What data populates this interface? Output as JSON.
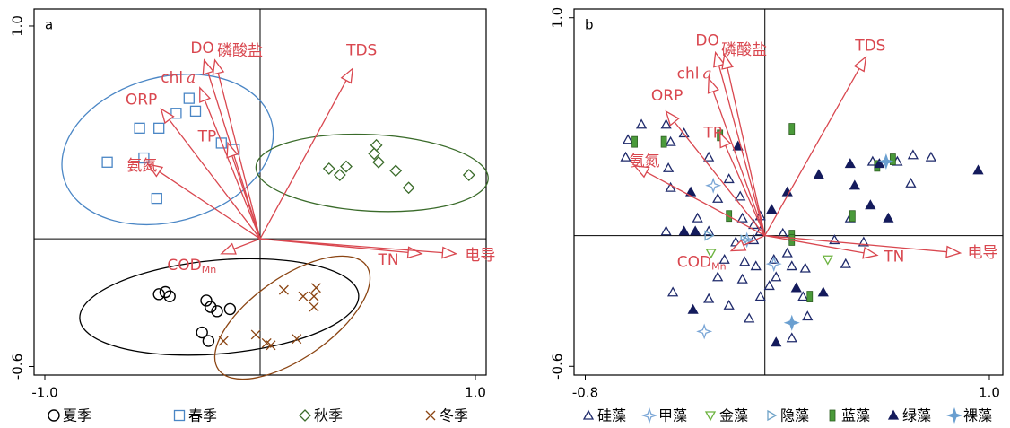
{
  "chart_data": [
    {
      "type": "scatter",
      "panel_label": "a",
      "xlim": [
        -1.05,
        1.05
      ],
      "ylim": [
        -0.64,
        1.08
      ],
      "xticks": [
        {
          "value": -1.0,
          "label": "-1.0"
        },
        {
          "value": 1.0,
          "label": "1.0"
        }
      ],
      "yticks": [
        -0.6,
        {
          "value": 1.0,
          "label": "1.0"
        }
      ],
      "origin_lines": true,
      "arrow_color": "#d9474f",
      "series": [
        {
          "name": "夏季",
          "marker": "circle",
          "color": "#000000",
          "x": [
            -0.47,
            -0.44,
            -0.42,
            -0.25,
            -0.23,
            -0.2,
            -0.14,
            -0.27,
            -0.24
          ],
          "values": [
            -0.26,
            -0.25,
            -0.27,
            -0.29,
            -0.32,
            -0.34,
            -0.33,
            -0.44,
            -0.48
          ],
          "ellipse": {
            "center": [
              -0.19,
              -0.32
            ],
            "radii": [
              0.65,
              0.22
            ],
            "angle": -5
          }
        },
        {
          "name": "春季",
          "marker": "square",
          "color": "#4a86c5",
          "x": [
            -0.33,
            -0.39,
            -0.3,
            -0.56,
            -0.47,
            -0.54,
            -0.71,
            -0.48,
            -0.18,
            -0.12
          ],
          "values": [
            0.66,
            0.59,
            0.6,
            0.52,
            0.52,
            0.38,
            0.36,
            0.19,
            0.45,
            0.42
          ],
          "ellipse": {
            "center": [
              -0.43,
              0.42
            ],
            "radii": [
              0.5,
              0.34
            ],
            "angle": -15
          }
        },
        {
          "name": "秋季",
          "marker": "diamond",
          "color": "#3a6b2a",
          "x": [
            0.54,
            0.53,
            0.32,
            0.4,
            0.37,
            0.55,
            0.63,
            0.69,
            0.97
          ],
          "values": [
            0.44,
            0.4,
            0.33,
            0.34,
            0.3,
            0.36,
            0.32,
            0.24,
            0.3
          ],
          "ellipse": {
            "center": [
              0.52,
              0.31
            ],
            "radii": [
              0.54,
              0.18
            ],
            "angle": 3
          }
        },
        {
          "name": "冬季",
          "marker": "x",
          "color": "#8b4513",
          "x": [
            0.26,
            0.2,
            0.25,
            0.25,
            0.11,
            -0.17,
            -0.02,
            0.03,
            0.05,
            0.17
          ],
          "values": [
            -0.23,
            -0.27,
            -0.27,
            -0.32,
            -0.24,
            -0.48,
            -0.45,
            -0.49,
            -0.5,
            -0.47
          ],
          "ellipse": {
            "center": [
              0.15,
              -0.37
            ],
            "radii": [
              0.42,
              0.19
            ],
            "angle": -35
          }
        }
      ],
      "arrows": [
        {
          "label": "DO",
          "x": -0.26,
          "y": 0.84
        },
        {
          "label": "磷酸盐",
          "x": -0.21,
          "y": 0.84
        },
        {
          "label": "chl",
          "suffix": "a",
          "suffix_style": "italic",
          "x": -0.28,
          "y": 0.71
        },
        {
          "label": "ORP",
          "x": -0.46,
          "y": 0.61
        },
        {
          "label": "TP",
          "x": -0.15,
          "y": 0.45
        },
        {
          "label": "氨氮",
          "x": -0.52,
          "y": 0.35
        },
        {
          "label": "TDS",
          "x": 0.43,
          "y": 0.8
        },
        {
          "label": "COD",
          "suffix": "Mn",
          "suffix_style": "subscript",
          "x": -0.18,
          "y": -0.07
        },
        {
          "label": "TN",
          "x": 0.75,
          "y": -0.07
        },
        {
          "label": "电导",
          "x": 0.91,
          "y": -0.07
        }
      ]
    },
    {
      "type": "scatter",
      "panel_label": "b",
      "xlim": [
        -0.85,
        1.06
      ],
      "ylim": [
        -0.64,
        1.04
      ],
      "xticks": [
        -0.8,
        {
          "value": 1.0,
          "label": "1.0"
        }
      ],
      "yticks": [
        -0.6,
        {
          "value": 1.0,
          "label": "1.0"
        }
      ],
      "origin_lines": true,
      "arrow_color": "#d9474f",
      "series": [
        {
          "name": "硅藻",
          "marker": "triangle",
          "color": "#1f2a6b",
          "x": [
            -0.55,
            -0.44,
            -0.61,
            -0.36,
            -0.42,
            -0.62,
            -0.43,
            -0.25,
            -0.42,
            -0.21,
            -0.11,
            -0.16,
            -0.3,
            -0.25,
            -0.44,
            -0.1,
            -0.05,
            -0.02,
            -0.02,
            -0.13,
            -0.18,
            -0.09,
            -0.21,
            -0.1,
            -0.04,
            0.04,
            0.1,
            0.12,
            0.18,
            0.05,
            0.02,
            -0.02,
            -0.16,
            -0.25,
            -0.41,
            -0.07,
            0.17,
            0.19,
            0.12,
            0.38,
            0.44,
            0.31,
            0.36,
            0.66,
            0.59,
            0.65,
            0.48,
            0.74,
            -0.05,
            0.08
          ],
          "values": [
            0.51,
            0.51,
            0.44,
            0.47,
            0.43,
            0.36,
            0.31,
            0.36,
            0.22,
            0.17,
            0.18,
            0.26,
            0.08,
            0.02,
            0.02,
            0.08,
            0.05,
            0.09,
            0.02,
            -0.03,
            -0.11,
            -0.12,
            -0.19,
            -0.2,
            -0.14,
            -0.11,
            -0.08,
            -0.14,
            -0.15,
            -0.19,
            -0.23,
            -0.28,
            -0.32,
            -0.29,
            -0.26,
            -0.38,
            -0.28,
            -0.37,
            -0.47,
            0.08,
            -0.03,
            -0.02,
            -0.13,
            0.37,
            0.34,
            0.24,
            0.34,
            0.36,
            -0.02,
            0.01
          ]
        },
        {
          "name": "甲藻",
          "marker": "star4",
          "color": "#7aa6d6",
          "x": [
            -0.23,
            -0.08,
            0.04,
            -0.27
          ],
          "values": [
            0.23,
            -0.02,
            -0.13,
            -0.44
          ]
        },
        {
          "name": "金藻",
          "marker": "triangle-down",
          "color": "#6cb33f",
          "x": [
            -0.24,
            0.28
          ],
          "values": [
            -0.08,
            -0.11
          ]
        },
        {
          "name": "隐藻",
          "marker": "triangle-right",
          "color": "#6fa3c8",
          "x": [
            -0.25,
            -0.09
          ],
          "values": [
            0.0,
            -0.02
          ]
        },
        {
          "name": "蓝藻",
          "marker": "rect",
          "color": "#4a9a3a",
          "x": [
            -0.58,
            -0.45,
            -0.2,
            0.12,
            -0.16,
            0.12,
            0.12,
            0.39,
            0.2,
            0.5,
            0.57
          ],
          "values": [
            0.43,
            0.43,
            0.46,
            0.49,
            0.09,
            0.0,
            -0.02,
            0.09,
            -0.28,
            0.32,
            0.35
          ]
        },
        {
          "name": "绿藻",
          "marker": "triangle-filled",
          "color": "#141b5c",
          "x": [
            -0.12,
            -0.33,
            0.1,
            -0.36,
            -0.31,
            0.03,
            0.24,
            0.38,
            0.4,
            0.51,
            0.95,
            0.55,
            0.14,
            0.26,
            -0.32,
            0.05,
            0.47
          ],
          "values": [
            0.41,
            0.2,
            0.2,
            0.02,
            0.02,
            0.12,
            0.28,
            0.33,
            0.23,
            0.33,
            0.3,
            0.08,
            -0.24,
            -0.26,
            -0.34,
            -0.49,
            0.14
          ]
        },
        {
          "name": "裸藻",
          "marker": "star-filled",
          "color": "#6a9fd0",
          "x": [
            0.12,
            0.54
          ],
          "values": [
            -0.4,
            0.34
          ]
        }
      ],
      "arrows": [
        {
          "label": "DO",
          "x": -0.22,
          "y": 0.84
        },
        {
          "label": "磷酸盐",
          "x": -0.18,
          "y": 0.83
        },
        {
          "label": "chl",
          "suffix": "a",
          "suffix_style": "italic",
          "x": -0.25,
          "y": 0.72
        },
        {
          "label": "ORP",
          "x": -0.44,
          "y": 0.57
        },
        {
          "label": "TP",
          "x": -0.2,
          "y": 0.47
        },
        {
          "label": "氨氮",
          "x": -0.58,
          "y": 0.32
        },
        {
          "label": "TDS",
          "x": 0.45,
          "y": 0.82
        },
        {
          "label": "COD",
          "suffix": "Mn",
          "suffix_style": "subscript",
          "x": -0.15,
          "y": -0.07
        },
        {
          "label": "TN",
          "x": 0.5,
          "y": -0.09
        },
        {
          "label": "电导",
          "x": 0.87,
          "y": -0.08
        }
      ]
    }
  ]
}
